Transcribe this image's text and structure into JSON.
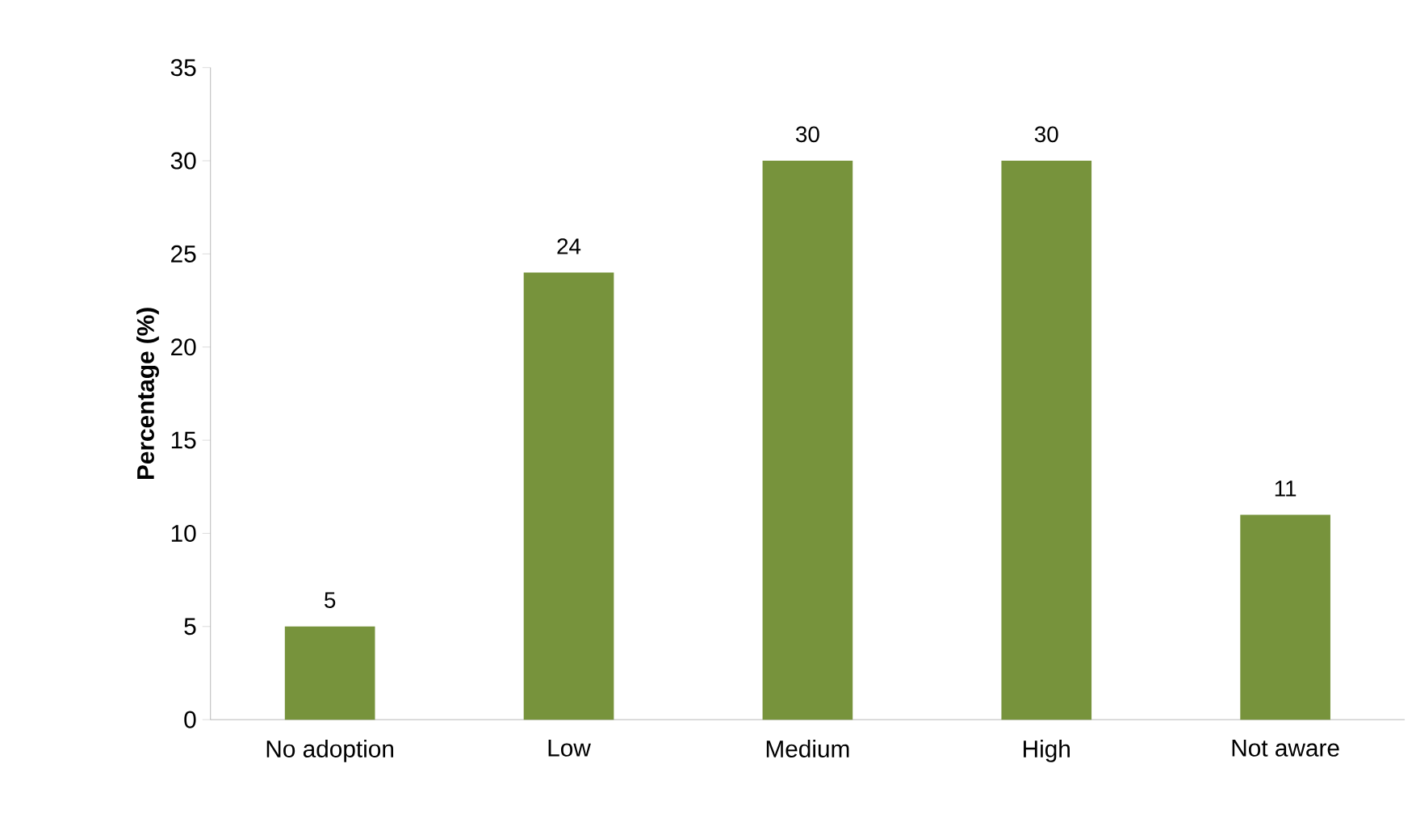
{
  "chart_data": {
    "type": "bar",
    "ylabel": "Percentage (%)",
    "categories": [
      "No adoption",
      "Low",
      "Medium",
      "High",
      "Not aware"
    ],
    "values": [
      5,
      24,
      30,
      30,
      11
    ],
    "color": "#77933c",
    "ylim": [
      0,
      35
    ],
    "yticks": [
      0,
      5,
      10,
      15,
      20,
      25,
      30,
      35
    ],
    "data_labels": true
  }
}
